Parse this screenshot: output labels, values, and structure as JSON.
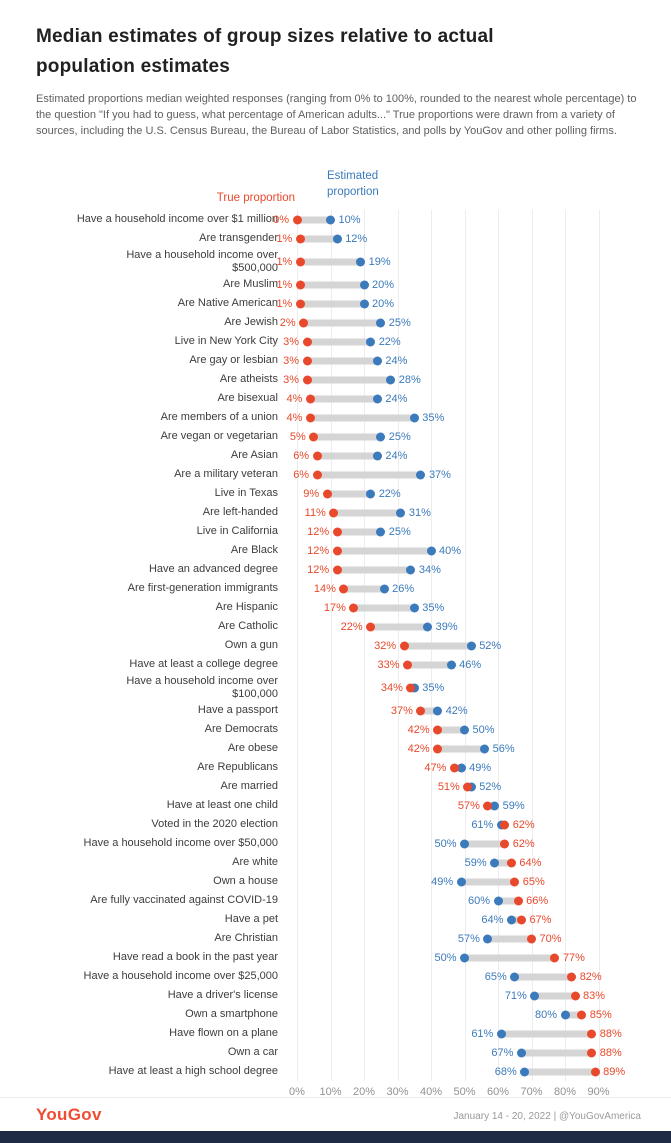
{
  "title": "Median estimates of group sizes relative to actual population estimates",
  "subtitle": "Estimated proportions median weighted responses (ranging from 0% to 100%, rounded to the nearest whole percentage) to the question \"If you had to guess, what percentage of American adults...\" True proportions were drawn from a variety of sources, including the U.S. Census Bureau, the Bureau of Labor Statistics, and polls by YouGov and other polling firms.",
  "colors": {
    "true": "#e8492c",
    "estimated": "#3b7abb",
    "connector": "#d5d5d5",
    "grid": "#ededed",
    "navy_bar": "#1f2a44",
    "logo_red": "#f04c34"
  },
  "chart_data": {
    "type": "scatter",
    "variant": "dumbbell",
    "title": "Median estimates of group sizes relative to actual population estimates",
    "legend": {
      "true": "True proportion",
      "estimated": "Estimated proportion"
    },
    "x_axis": {
      "min": 0,
      "max": 90,
      "unit": "%",
      "tick_labels": [
        "0%",
        "10%",
        "20%",
        "30%",
        "40%",
        "50%",
        "60%",
        "70%",
        "80%",
        "90%"
      ]
    },
    "rows": [
      {
        "label": "Have a household income over $1 million",
        "true": 0,
        "estimated": 10
      },
      {
        "label": "Are transgender",
        "true": 1,
        "estimated": 12
      },
      {
        "label": "Have a household income over\n$500,000",
        "true": 1,
        "estimated": 19
      },
      {
        "label": "Are Muslim",
        "true": 1,
        "estimated": 20
      },
      {
        "label": "Are Native American",
        "true": 1,
        "estimated": 20
      },
      {
        "label": "Are Jewish",
        "true": 2,
        "estimated": 25
      },
      {
        "label": "Live in New York City",
        "true": 3,
        "estimated": 22
      },
      {
        "label": "Are gay or lesbian",
        "true": 3,
        "estimated": 24
      },
      {
        "label": "Are atheists",
        "true": 3,
        "estimated": 28
      },
      {
        "label": "Are bisexual",
        "true": 4,
        "estimated": 24
      },
      {
        "label": "Are members of a union",
        "true": 4,
        "estimated": 35
      },
      {
        "label": "Are vegan or vegetarian",
        "true": 5,
        "estimated": 25
      },
      {
        "label": "Are Asian",
        "true": 6,
        "estimated": 24
      },
      {
        "label": "Are a military veteran",
        "true": 6,
        "estimated": 37
      },
      {
        "label": "Live in Texas",
        "true": 9,
        "estimated": 22
      },
      {
        "label": "Are left-handed",
        "true": 11,
        "estimated": 31
      },
      {
        "label": "Live in California",
        "true": 12,
        "estimated": 25
      },
      {
        "label": "Are Black",
        "true": 12,
        "estimated": 40
      },
      {
        "label": "Have an advanced degree",
        "true": 12,
        "estimated": 34
      },
      {
        "label": "Are first-generation immigrants",
        "true": 14,
        "estimated": 26
      },
      {
        "label": "Are Hispanic",
        "true": 17,
        "estimated": 35
      },
      {
        "label": "Are Catholic",
        "true": 22,
        "estimated": 39
      },
      {
        "label": "Own a gun",
        "true": 32,
        "estimated": 52
      },
      {
        "label": "Have at least a college degree",
        "true": 33,
        "estimated": 46
      },
      {
        "label": "Have a household income over\n$100,000",
        "true": 34,
        "estimated": 35
      },
      {
        "label": "Have a passport",
        "true": 37,
        "estimated": 42
      },
      {
        "label": "Are Democrats",
        "true": 42,
        "estimated": 50
      },
      {
        "label": "Are obese",
        "true": 42,
        "estimated": 56
      },
      {
        "label": "Are Republicans",
        "true": 47,
        "estimated": 49
      },
      {
        "label": "Are married",
        "true": 51,
        "estimated": 52
      },
      {
        "label": "Have at least one child",
        "true": 57,
        "estimated": 59
      },
      {
        "label": "Voted in the 2020 election",
        "true": 62,
        "estimated": 61
      },
      {
        "label": "Have a household income over $50,000",
        "true": 62,
        "estimated": 50
      },
      {
        "label": "Are white",
        "true": 64,
        "estimated": 59
      },
      {
        "label": "Own a house",
        "true": 65,
        "estimated": 49
      },
      {
        "label": "Are fully vaccinated against COVID-19",
        "true": 66,
        "estimated": 60
      },
      {
        "label": "Have a pet",
        "true": 67,
        "estimated": 64
      },
      {
        "label": "Are Christian",
        "true": 70,
        "estimated": 57
      },
      {
        "label": "Have read a book in the past year",
        "true": 77,
        "estimated": 50
      },
      {
        "label": "Have a household income over $25,000",
        "true": 82,
        "estimated": 65
      },
      {
        "label": "Have a driver's license",
        "true": 83,
        "estimated": 71
      },
      {
        "label": "Own a smartphone",
        "true": 85,
        "estimated": 80
      },
      {
        "label": "Have flown on a plane",
        "true": 88,
        "estimated": 61
      },
      {
        "label": "Own a car",
        "true": 88,
        "estimated": 67
      },
      {
        "label": "Have at least a high school degree",
        "true": 89,
        "estimated": 68
      }
    ]
  },
  "footer": {
    "logo": "YouGov",
    "meta": "January 14 - 20, 2022 | @YouGovAmerica"
  }
}
